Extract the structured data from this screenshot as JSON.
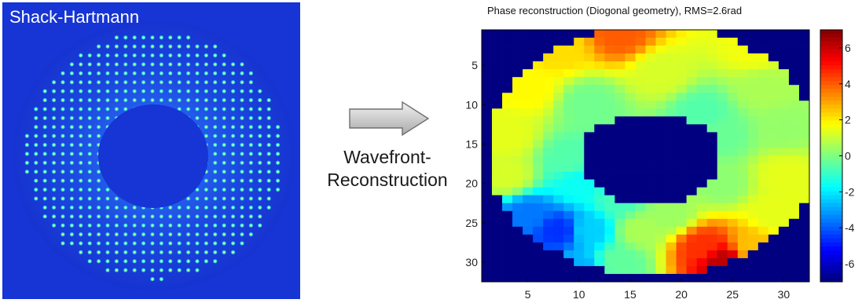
{
  "left_panel": {
    "label": "Shack-Hartmann"
  },
  "middle": {
    "caption_line1": "Wavefront-",
    "caption_line2": "Reconstruction",
    "arrow": "right-arrow-icon"
  },
  "chart_data": {
    "type": "heatmap",
    "title": "Phase reconstruction (Diogonal geometry), RMS=2.6rad",
    "xlabel": "",
    "ylabel": "",
    "grid_size": [
      32,
      32
    ],
    "x_ticks": [
      5,
      10,
      15,
      20,
      25,
      30
    ],
    "y_ticks": [
      5,
      10,
      15,
      20,
      25,
      30
    ],
    "colorbar": {
      "range": [
        -7,
        7
      ],
      "ticks": [
        -6,
        -4,
        -2,
        0,
        2,
        4,
        6
      ],
      "colormap": "jet"
    },
    "masked_value": -7,
    "pupil": {
      "outer_center": [
        17.2,
        15.8
      ],
      "outer_radii": [
        16.2,
        16.0
      ],
      "inner_center": [
        17.0,
        16.8
      ],
      "inner_radii": [
        7.0,
        5.8
      ]
    },
    "value_regions": [
      {
        "row": 1,
        "col": 14,
        "value": 4.0
      },
      {
        "row": 3,
        "col": 8,
        "value": 2.2
      },
      {
        "row": 3,
        "col": 27,
        "value": 1.6
      },
      {
        "row": 8,
        "col": 5,
        "value": 1.8
      },
      {
        "row": 8,
        "col": 28,
        "value": 0.6
      },
      {
        "row": 14,
        "col": 3,
        "value": 1.4
      },
      {
        "row": 13,
        "col": 30,
        "value": 0.3
      },
      {
        "row": 19,
        "col": 3,
        "value": 1.2
      },
      {
        "row": 19,
        "col": 30,
        "value": 1.4
      },
      {
        "row": 24,
        "col": 5,
        "value": -3.6
      },
      {
        "row": 26,
        "col": 8,
        "value": -4.6
      },
      {
        "row": 26,
        "col": 11,
        "value": -2.4
      },
      {
        "row": 31,
        "col": 10,
        "value": -2.8
      },
      {
        "row": 30,
        "col": 14,
        "value": -0.4
      },
      {
        "row": 26,
        "col": 16,
        "value": 0.6
      },
      {
        "row": 24,
        "col": 19,
        "value": 0.4
      },
      {
        "row": 28,
        "col": 22,
        "value": 4.6
      },
      {
        "row": 30,
        "col": 24,
        "value": 6.2
      },
      {
        "row": 28,
        "col": 27,
        "value": 2.6
      },
      {
        "row": 24,
        "col": 29,
        "value": 1.4
      },
      {
        "row": 17,
        "col": 9,
        "value": -0.6
      },
      {
        "row": 20,
        "col": 10,
        "value": -1.6
      },
      {
        "row": 10,
        "col": 11,
        "value": -0.2
      },
      {
        "row": 11,
        "col": 22,
        "value": -0.6
      },
      {
        "row": 14,
        "col": 24,
        "value": -0.3
      },
      {
        "row": 20,
        "col": 24,
        "value": 0.2
      },
      {
        "row": 6,
        "col": 18,
        "value": 1.2
      },
      {
        "row": 22,
        "col": 14,
        "value": -0.8
      }
    ]
  }
}
